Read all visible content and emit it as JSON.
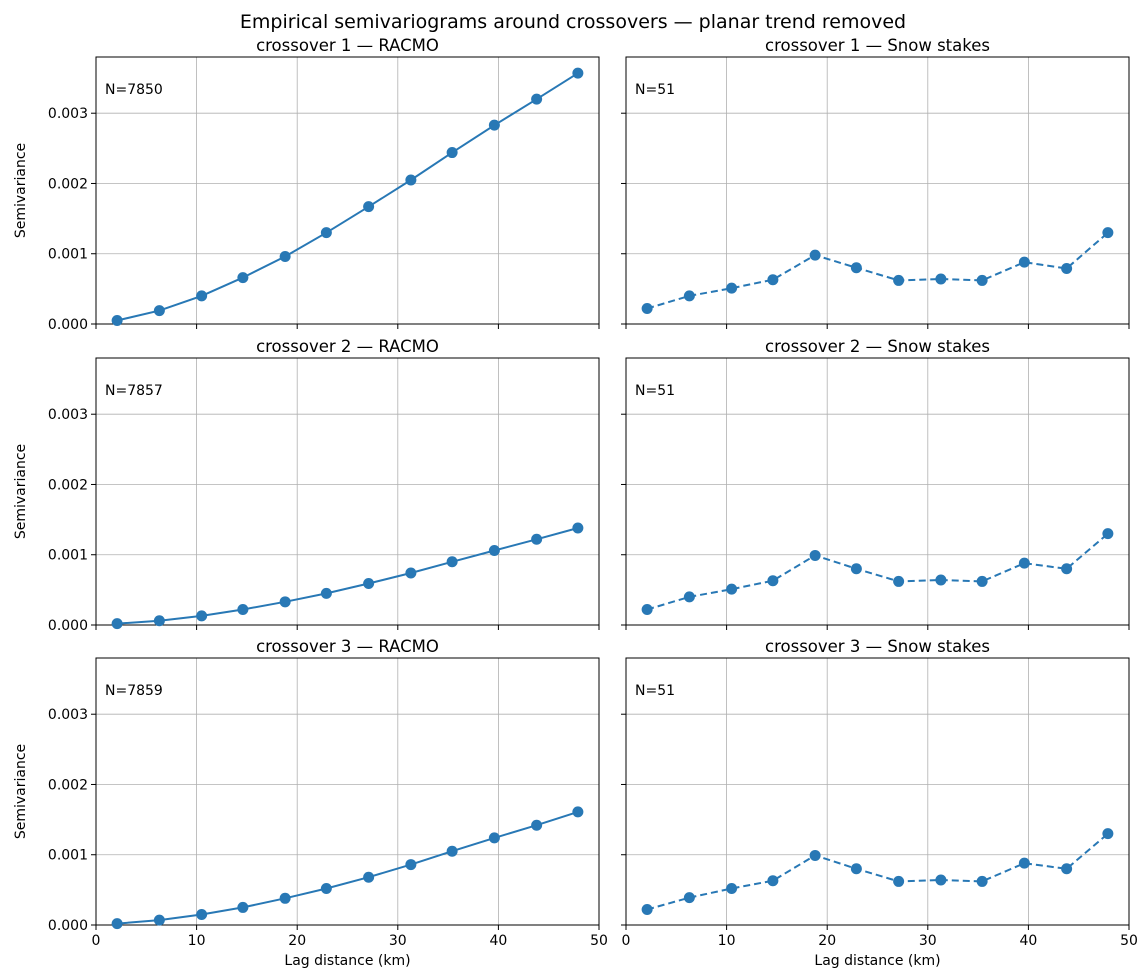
{
  "figure": {
    "suptitle": "Empirical semivariograms around crossovers — planar trend removed",
    "line_color": "#2878b5",
    "grid": true
  },
  "chart_data": [
    {
      "type": "line",
      "title": "crossover 1 — RACMO",
      "annotation": "N=7850",
      "xlabel": "",
      "ylabel": "Semivariance",
      "xlim": [
        0,
        50
      ],
      "ylim": [
        0,
        0.0038
      ],
      "xticks": [
        0,
        10,
        20,
        30,
        40,
        50
      ],
      "xticklabels": [],
      "yticks": [
        0.0,
        0.001,
        0.002,
        0.003
      ],
      "yticklabels": [
        "0.000",
        "0.001",
        "0.002",
        "0.003"
      ],
      "line_style": "solid",
      "series": [
        {
          "x": [
            2.1,
            6.3,
            10.5,
            14.6,
            18.8,
            22.9,
            27.1,
            31.3,
            35.4,
            39.6,
            43.8,
            47.9
          ],
          "y": [
            5e-05,
            0.00019,
            0.0004,
            0.00066,
            0.00096,
            0.0013,
            0.00167,
            0.00205,
            0.00244,
            0.00283,
            0.0032,
            0.00357
          ]
        }
      ]
    },
    {
      "type": "line",
      "title": "crossover 1 — Snow stakes",
      "annotation": "N=51",
      "xlabel": "",
      "ylabel": "",
      "xlim": [
        0,
        50
      ],
      "ylim": [
        0,
        0.0038
      ],
      "xticks": [
        0,
        10,
        20,
        30,
        40,
        50
      ],
      "xticklabels": [],
      "yticks": [
        0.0,
        0.001,
        0.002,
        0.003
      ],
      "yticklabels": [],
      "line_style": "dashed",
      "series": [
        {
          "x": [
            2.1,
            6.3,
            10.5,
            14.6,
            18.8,
            22.9,
            27.1,
            31.3,
            35.4,
            39.6,
            43.8,
            47.9
          ],
          "y": [
            0.00022,
            0.0004,
            0.00051,
            0.00063,
            0.00098,
            0.0008,
            0.00062,
            0.00064,
            0.00062,
            0.00088,
            0.00079,
            0.0013
          ]
        }
      ]
    },
    {
      "type": "line",
      "title": "crossover 2 — RACMO",
      "annotation": "N=7857",
      "xlabel": "",
      "ylabel": "Semivariance",
      "xlim": [
        0,
        50
      ],
      "ylim": [
        0,
        0.0038
      ],
      "xticks": [
        0,
        10,
        20,
        30,
        40,
        50
      ],
      "xticklabels": [],
      "yticks": [
        0.0,
        0.001,
        0.002,
        0.003
      ],
      "yticklabels": [
        "0.000",
        "0.001",
        "0.002",
        "0.003"
      ],
      "line_style": "solid",
      "series": [
        {
          "x": [
            2.1,
            6.3,
            10.5,
            14.6,
            18.8,
            22.9,
            27.1,
            31.3,
            35.4,
            39.6,
            43.8,
            47.9
          ],
          "y": [
            2e-05,
            6e-05,
            0.00013,
            0.00022,
            0.00033,
            0.00045,
            0.00059,
            0.00074,
            0.0009,
            0.00106,
            0.00122,
            0.00138
          ]
        }
      ]
    },
    {
      "type": "line",
      "title": "crossover 2 — Snow stakes",
      "annotation": "N=51",
      "xlabel": "",
      "ylabel": "",
      "xlim": [
        0,
        50
      ],
      "ylim": [
        0,
        0.0038
      ],
      "xticks": [
        0,
        10,
        20,
        30,
        40,
        50
      ],
      "xticklabels": [],
      "yticks": [
        0.0,
        0.001,
        0.002,
        0.003
      ],
      "yticklabels": [],
      "line_style": "dashed",
      "series": [
        {
          "x": [
            2.1,
            6.3,
            10.5,
            14.6,
            18.8,
            22.9,
            27.1,
            31.3,
            35.4,
            39.6,
            43.8,
            47.9
          ],
          "y": [
            0.00022,
            0.0004,
            0.00051,
            0.00063,
            0.00099,
            0.0008,
            0.00062,
            0.00064,
            0.00062,
            0.00088,
            0.0008,
            0.0013
          ]
        }
      ]
    },
    {
      "type": "line",
      "title": "crossover 3 — RACMO",
      "annotation": "N=7859",
      "xlabel": "Lag distance (km)",
      "ylabel": "Semivariance",
      "xlim": [
        0,
        50
      ],
      "ylim": [
        0,
        0.0038
      ],
      "xticks": [
        0,
        10,
        20,
        30,
        40,
        50
      ],
      "xticklabels": [
        "0",
        "10",
        "20",
        "30",
        "40",
        "50"
      ],
      "yticks": [
        0.0,
        0.001,
        0.002,
        0.003
      ],
      "yticklabels": [
        "0.000",
        "0.001",
        "0.002",
        "0.003"
      ],
      "line_style": "solid",
      "series": [
        {
          "x": [
            2.1,
            6.3,
            10.5,
            14.6,
            18.8,
            22.9,
            27.1,
            31.3,
            35.4,
            39.6,
            43.8,
            47.9
          ],
          "y": [
            2e-05,
            7e-05,
            0.00015,
            0.00025,
            0.00038,
            0.00052,
            0.00068,
            0.00086,
            0.00105,
            0.00124,
            0.00142,
            0.00161
          ]
        }
      ]
    },
    {
      "type": "line",
      "title": "crossover 3 — Snow stakes",
      "annotation": "N=51",
      "xlabel": "Lag distance (km)",
      "ylabel": "",
      "xlim": [
        0,
        50
      ],
      "ylim": [
        0,
        0.0038
      ],
      "xticks": [
        0,
        10,
        20,
        30,
        40,
        50
      ],
      "xticklabels": [
        "0",
        "10",
        "20",
        "30",
        "40",
        "50"
      ],
      "yticks": [
        0.0,
        0.001,
        0.002,
        0.003
      ],
      "yticklabels": [],
      "line_style": "dashed",
      "series": [
        {
          "x": [
            2.1,
            6.3,
            10.5,
            14.6,
            18.8,
            22.9,
            27.1,
            31.3,
            35.4,
            39.6,
            43.8,
            47.9
          ],
          "y": [
            0.00022,
            0.00039,
            0.00052,
            0.00063,
            0.00099,
            0.0008,
            0.00062,
            0.00064,
            0.00062,
            0.00088,
            0.0008,
            0.0013
          ]
        }
      ]
    }
  ]
}
